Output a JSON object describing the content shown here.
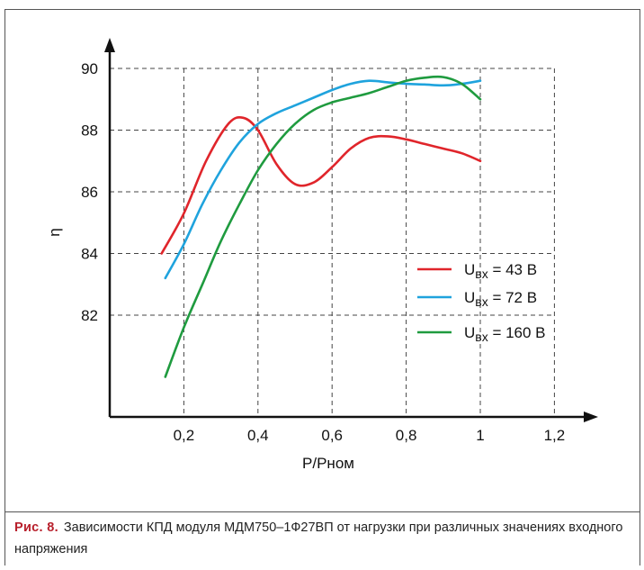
{
  "chart_data": {
    "type": "line",
    "xlabel": "P/Pном",
    "ylabel": "η",
    "xlim": [
      0,
      1.3
    ],
    "ylim": [
      79.5,
      92
    ],
    "x_ticks": [
      {
        "value": 0.2,
        "label": "0,2"
      },
      {
        "value": 0.4,
        "label": "0,4"
      },
      {
        "value": 0.6,
        "label": "0,6"
      },
      {
        "value": 0.8,
        "label": "0,8"
      },
      {
        "value": 1.0,
        "label": "1"
      },
      {
        "value": 1.2,
        "label": "1,2"
      }
    ],
    "y_ticks": [
      {
        "value": 82,
        "label": "82"
      },
      {
        "value": 84,
        "label": "84"
      },
      {
        "value": 86,
        "label": "86"
      },
      {
        "value": 88,
        "label": "88"
      },
      {
        "value": 90,
        "label": "90"
      }
    ],
    "grid": true,
    "legend_position": "right",
    "series": [
      {
        "name": "U",
        "subscript": "вх",
        "value_text": " = 43 В",
        "color": "#e0252b",
        "x": [
          0.14,
          0.2,
          0.26,
          0.32,
          0.36,
          0.4,
          0.45,
          0.5,
          0.55,
          0.6,
          0.65,
          0.7,
          0.75,
          0.8,
          0.85,
          0.9,
          0.95,
          1.0
        ],
        "y": [
          84.0,
          85.3,
          87.0,
          88.2,
          88.4,
          88.0,
          86.9,
          86.25,
          86.3,
          86.8,
          87.4,
          87.75,
          87.8,
          87.7,
          87.55,
          87.4,
          87.25,
          87.0
        ]
      },
      {
        "name": "U",
        "subscript": "вх",
        "value_text": " = 72 В",
        "color": "#1fa3dd",
        "x": [
          0.15,
          0.2,
          0.25,
          0.3,
          0.35,
          0.4,
          0.45,
          0.5,
          0.55,
          0.6,
          0.65,
          0.7,
          0.75,
          0.8,
          0.85,
          0.9,
          0.95,
          1.0
        ],
        "y": [
          83.2,
          84.3,
          85.6,
          86.7,
          87.6,
          88.2,
          88.55,
          88.8,
          89.05,
          89.3,
          89.5,
          89.6,
          89.55,
          89.5,
          89.48,
          89.45,
          89.5,
          89.6
        ]
      },
      {
        "name": "U",
        "subscript": "вх",
        "value_text": " = 160 В",
        "color": "#1f9b3f",
        "x": [
          0.15,
          0.2,
          0.25,
          0.3,
          0.35,
          0.4,
          0.45,
          0.5,
          0.55,
          0.6,
          0.65,
          0.7,
          0.75,
          0.8,
          0.85,
          0.9,
          0.95,
          1.0
        ],
        "y": [
          80.0,
          81.6,
          83.0,
          84.4,
          85.6,
          86.7,
          87.55,
          88.2,
          88.65,
          88.9,
          89.05,
          89.2,
          89.4,
          89.6,
          89.7,
          89.72,
          89.5,
          89.0
        ]
      }
    ]
  },
  "caption": {
    "label": "Рис. 8.",
    "text": "Зависимости КПД модуля МДМ750–1Ф27ВП от нагрузки при различных значениях входного напряжения"
  }
}
